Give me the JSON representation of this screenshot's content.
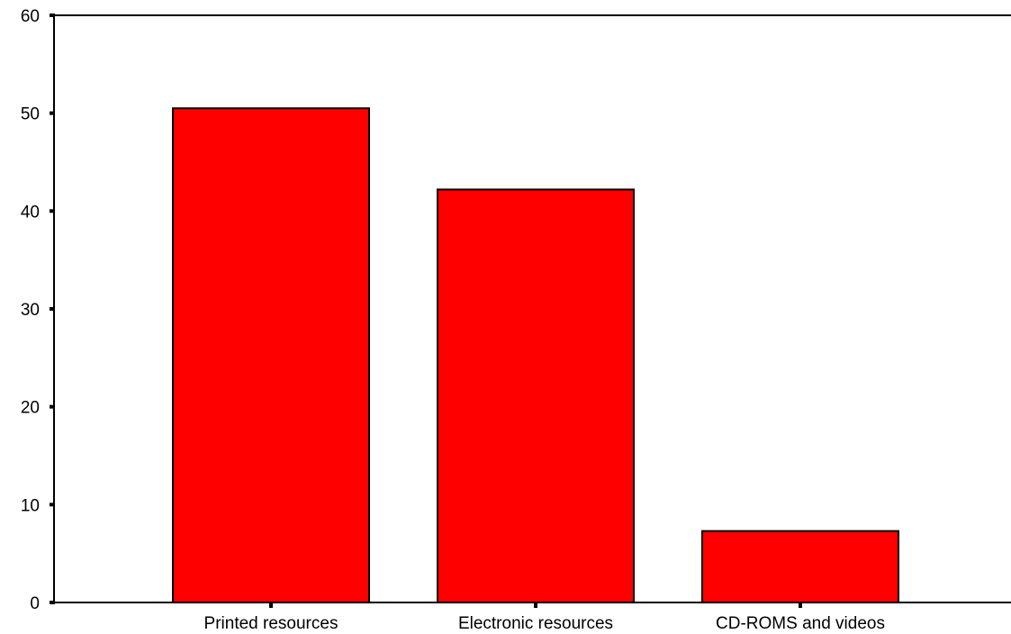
{
  "chart_data": {
    "type": "bar",
    "categories": [
      "Printed resources",
      "Electronic resources",
      "CD-ROMS and videos"
    ],
    "values": [
      50.5,
      42.2,
      7.3
    ],
    "title": "",
    "xlabel": "",
    "ylabel": "",
    "ylim": [
      0,
      60
    ],
    "yticks": [
      0,
      10,
      20,
      30,
      40,
      50,
      60
    ],
    "grid": false,
    "legend": "none",
    "colors": {
      "bar_fill": "#ff0000",
      "bar_stroke": "#000000",
      "axis": "#000000",
      "background": "#ffffff"
    }
  }
}
